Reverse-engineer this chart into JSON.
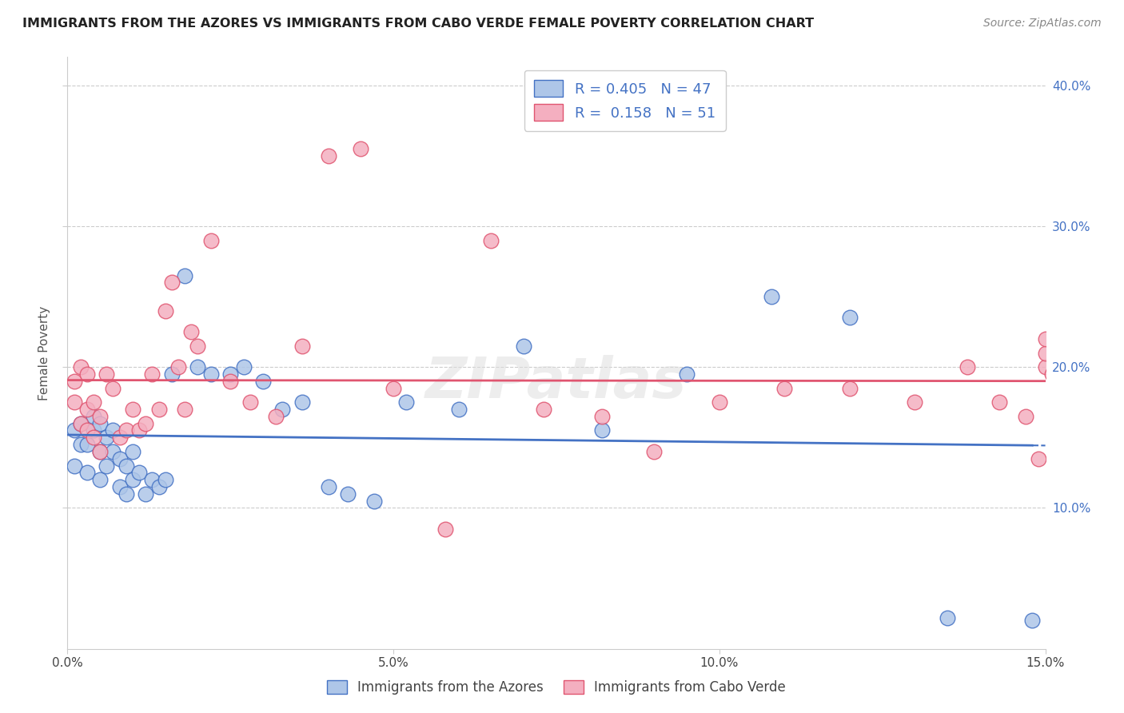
{
  "title": "IMMIGRANTS FROM THE AZORES VS IMMIGRANTS FROM CABO VERDE FEMALE POVERTY CORRELATION CHART",
  "source": "Source: ZipAtlas.com",
  "ylabel": "Female Poverty",
  "xlabel_azores": "Immigrants from the Azores",
  "xlabel_caboverde": "Immigrants from Cabo Verde",
  "azores_R": 0.405,
  "azores_N": 47,
  "caboverde_R": 0.158,
  "caboverde_N": 51,
  "xlim": [
    0.0,
    0.15
  ],
  "ylim": [
    0.0,
    0.42
  ],
  "yticks": [
    0.1,
    0.2,
    0.3,
    0.4
  ],
  "xticks": [
    0.0,
    0.05,
    0.1,
    0.15
  ],
  "azores_color": "#aec6e8",
  "caboverde_color": "#f4afc0",
  "azores_line_color": "#4472c4",
  "caboverde_line_color": "#e05570",
  "background_color": "#ffffff",
  "grid_color": "#cccccc",
  "azores_x": [
    0.001,
    0.001,
    0.002,
    0.002,
    0.003,
    0.003,
    0.004,
    0.004,
    0.005,
    0.005,
    0.005,
    0.006,
    0.006,
    0.007,
    0.007,
    0.008,
    0.008,
    0.009,
    0.009,
    0.01,
    0.01,
    0.011,
    0.012,
    0.013,
    0.014,
    0.015,
    0.016,
    0.018,
    0.02,
    0.022,
    0.025,
    0.027,
    0.03,
    0.033,
    0.036,
    0.04,
    0.043,
    0.047,
    0.052,
    0.06,
    0.07,
    0.082,
    0.095,
    0.108,
    0.12,
    0.135,
    0.148
  ],
  "azores_y": [
    0.13,
    0.155,
    0.145,
    0.16,
    0.125,
    0.145,
    0.155,
    0.165,
    0.12,
    0.14,
    0.16,
    0.13,
    0.15,
    0.14,
    0.155,
    0.115,
    0.135,
    0.11,
    0.13,
    0.12,
    0.14,
    0.125,
    0.11,
    0.12,
    0.115,
    0.12,
    0.195,
    0.265,
    0.2,
    0.195,
    0.195,
    0.2,
    0.19,
    0.17,
    0.175,
    0.115,
    0.11,
    0.105,
    0.175,
    0.17,
    0.215,
    0.155,
    0.195,
    0.25,
    0.235,
    0.022,
    0.02
  ],
  "caboverde_x": [
    0.001,
    0.001,
    0.002,
    0.002,
    0.003,
    0.003,
    0.003,
    0.004,
    0.004,
    0.005,
    0.005,
    0.006,
    0.007,
    0.008,
    0.009,
    0.01,
    0.011,
    0.012,
    0.013,
    0.014,
    0.015,
    0.016,
    0.017,
    0.018,
    0.019,
    0.02,
    0.022,
    0.025,
    0.028,
    0.032,
    0.036,
    0.04,
    0.045,
    0.05,
    0.058,
    0.065,
    0.073,
    0.082,
    0.09,
    0.1,
    0.11,
    0.12,
    0.13,
    0.138,
    0.143,
    0.147,
    0.149,
    0.15,
    0.15,
    0.15,
    0.151
  ],
  "caboverde_y": [
    0.175,
    0.19,
    0.16,
    0.2,
    0.155,
    0.17,
    0.195,
    0.15,
    0.175,
    0.14,
    0.165,
    0.195,
    0.185,
    0.15,
    0.155,
    0.17,
    0.155,
    0.16,
    0.195,
    0.17,
    0.24,
    0.26,
    0.2,
    0.17,
    0.225,
    0.215,
    0.29,
    0.19,
    0.175,
    0.165,
    0.215,
    0.35,
    0.355,
    0.185,
    0.085,
    0.29,
    0.17,
    0.165,
    0.14,
    0.175,
    0.185,
    0.185,
    0.175,
    0.2,
    0.175,
    0.165,
    0.135,
    0.2,
    0.21,
    0.22,
    0.195
  ]
}
